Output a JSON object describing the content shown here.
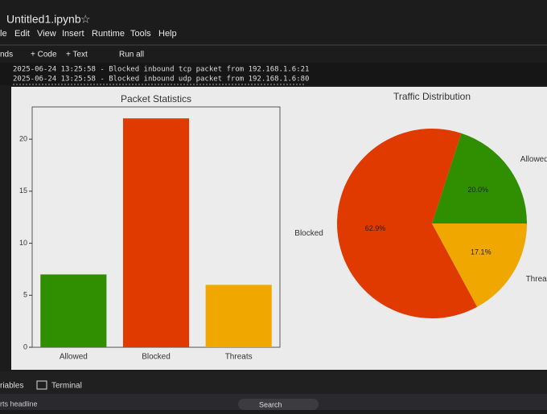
{
  "app": {
    "title": "Untitled1.ipynb",
    "menu": [
      "le",
      "Edit",
      "View",
      "Insert",
      "Runtime",
      "Tools",
      "Help"
    ],
    "toolbar": [
      "nds",
      "+ Code",
      "+ Text",
      "Run all"
    ],
    "log": [
      "2025-06-24 13:25:58 - Blocked inbound tcp packet from 192.168.1.6:21",
      "2025-06-24 13:25:58 - Blocked inbound udp packet from 192.168.1.6:80"
    ],
    "bottom_tabs": [
      "riables",
      "Terminal"
    ],
    "taskbar": [
      "rts headline",
      "Search"
    ]
  },
  "chart_data": [
    {
      "type": "bar",
      "title": "Packet Statistics",
      "categories": [
        "Allowed",
        "Blocked",
        "Threats"
      ],
      "values": [
        7,
        22,
        6
      ],
      "colors": [
        "#2f8f00",
        "#e03a00",
        "#f0a800"
      ],
      "ylim": [
        0,
        23.1
      ],
      "yticks": [
        0,
        5,
        10,
        15,
        20
      ]
    },
    {
      "type": "pie",
      "title": "Traffic Distribution",
      "categories": [
        "Allowed",
        "Blocked",
        "Threats"
      ],
      "values": [
        20.0,
        62.9,
        17.1
      ],
      "value_labels": [
        "20.0%",
        "62.9%",
        "17.1%"
      ],
      "colors": [
        "#2f8f00",
        "#e03a00",
        "#f0a800"
      ]
    }
  ]
}
